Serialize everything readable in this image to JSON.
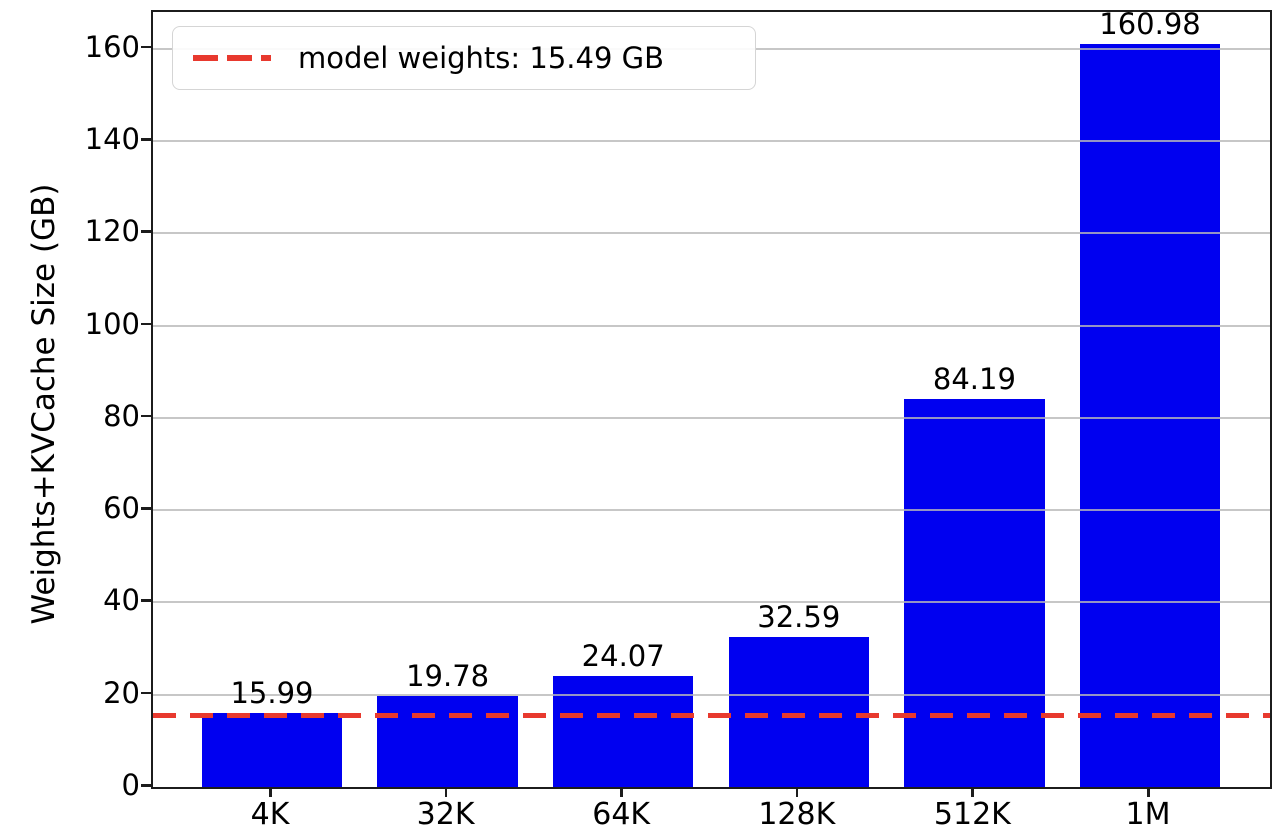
{
  "chart_data": {
    "type": "bar",
    "title": "",
    "xlabel": "",
    "ylabel": "Weights+KVCache Size (GB)",
    "categories": [
      "4K",
      "32K",
      "64K",
      "128K",
      "512K",
      "1M"
    ],
    "values": [
      15.99,
      19.78,
      24.07,
      32.59,
      84.19,
      160.98
    ],
    "bar_labels": [
      "15.99",
      "19.78",
      "24.07",
      "32.59",
      "84.19",
      "160.98"
    ],
    "yticks": [
      0,
      20,
      40,
      60,
      80,
      100,
      120,
      140,
      160
    ],
    "ylim": [
      0,
      168
    ],
    "grid": "horizontal, drawn above bars",
    "legend": {
      "position": "upper left",
      "label": "model weights: 15.49 GB"
    },
    "reference_line": {
      "value": 15.49,
      "style": "dashed",
      "color": "#e8392e"
    },
    "colors": {
      "bar": "#0000f0",
      "reference": "#e8392e",
      "grid": "#c8c8c8",
      "spine": "#1c1c1c",
      "text": "#000000",
      "legend_border": "#d5d5d5"
    }
  }
}
